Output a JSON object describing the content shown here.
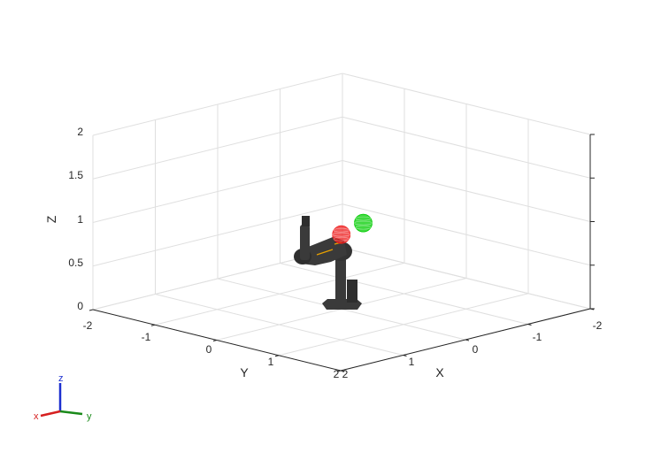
{
  "chart_data": {
    "type": "scatter",
    "projection": "3d",
    "xlabel": "X",
    "ylabel": "Y",
    "zlabel": "Z",
    "xlim": [
      -2,
      2
    ],
    "ylim": [
      -2,
      2
    ],
    "zlim": [
      0,
      2
    ],
    "x_ticks": [
      "-2",
      "-1",
      "0",
      "1",
      "2"
    ],
    "y_ticks": [
      "-2",
      "-1",
      "0",
      "1",
      "2"
    ],
    "z_ticks": [
      "0",
      "0.5",
      "1",
      "1.5",
      "2"
    ],
    "grid": true,
    "series": [
      {
        "marker": "sphere",
        "color": "#00cc00",
        "points": [
          {
            "x": 0.0,
            "y": -0.35,
            "z": 1.05
          }
        ]
      },
      {
        "marker": "sphere",
        "color": "#ee1c1c",
        "points": [
          {
            "x": -0.55,
            "y": -0.55,
            "z": 1.05
          }
        ]
      }
    ]
  },
  "triad": {
    "x_label": "x",
    "y_label": "y",
    "z_label": "z",
    "x_color": "#d62020",
    "y_color": "#1a8a1a",
    "z_color": "#1c2fcf"
  },
  "robot": {
    "body_color": "#3a3a3a",
    "accent_color": "#e8a000"
  }
}
